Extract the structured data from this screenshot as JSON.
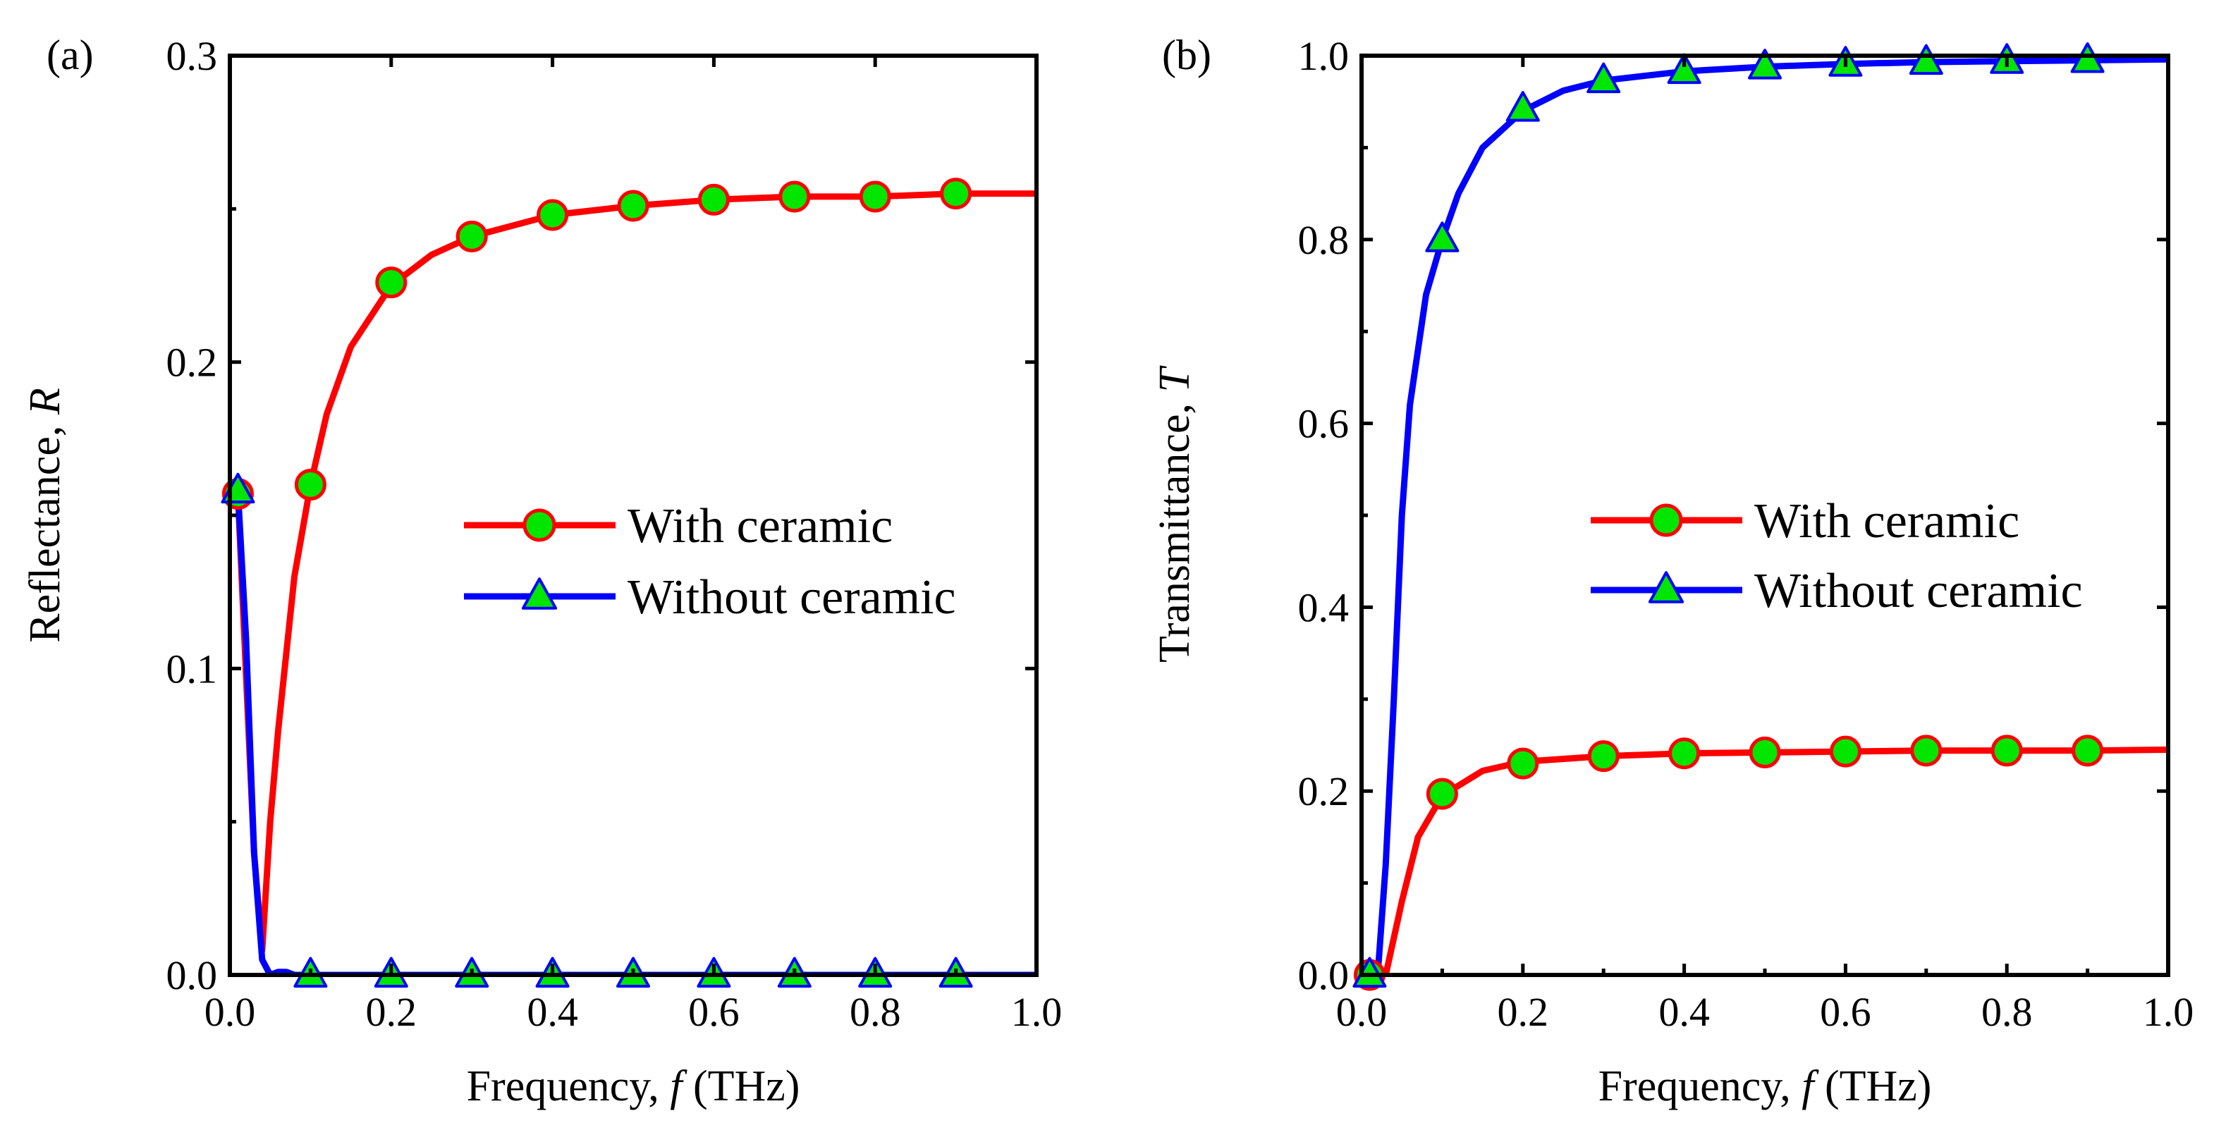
{
  "colors": {
    "with_ceramic": "#ff0000",
    "without_ceramic": "#0000ff",
    "marker_fill": "#00e600",
    "axis": "#000000"
  },
  "chart_data": [
    {
      "panel_label": "(a)",
      "type": "line",
      "xlabel_prefix": "Frequency, ",
      "xlabel_italic": "f",
      "xlabel_suffix": " (THz)",
      "ylabel_prefix": "Reflectance, ",
      "ylabel_italic": "R",
      "xlim": [
        0.0,
        1.0
      ],
      "ylim": [
        0.0,
        0.3
      ],
      "xticks": [
        0.0,
        0.2,
        0.4,
        0.6,
        0.8,
        1.0
      ],
      "xtick_labels": [
        "0.0",
        "0.2",
        "0.4",
        "0.6",
        "0.8",
        "1.0"
      ],
      "yticks": [
        0.0,
        0.1,
        0.2,
        0.3
      ],
      "ytick_labels": [
        "0.0",
        "0.1",
        "0.2",
        "0.3"
      ],
      "legend": [
        "With ceramic",
        "Without ceramic"
      ],
      "legend_position": "center-right",
      "series": [
        {
          "name": "With ceramic",
          "marker": "circle",
          "color_key": "with_ceramic",
          "x": [
            0.01,
            0.03,
            0.04,
            0.05,
            0.06,
            0.08,
            0.1,
            0.12,
            0.15,
            0.2,
            0.25,
            0.3,
            0.4,
            0.5,
            0.6,
            0.7,
            0.8,
            0.9,
            1.0
          ],
          "values": [
            0.157,
            0.04,
            0.008,
            0.05,
            0.08,
            0.13,
            0.16,
            0.183,
            0.205,
            0.225,
            0.235,
            0.241,
            0.248,
            0.251,
            0.253,
            0.254,
            0.254,
            0.255,
            0.255
          ],
          "marker_x": [
            0.01,
            0.1,
            0.2,
            0.3,
            0.4,
            0.5,
            0.6,
            0.7,
            0.8,
            0.9
          ],
          "marker_values": [
            0.157,
            0.16,
            0.226,
            0.241,
            0.248,
            0.251,
            0.253,
            0.254,
            0.254,
            0.255
          ]
        },
        {
          "name": "Without ceramic",
          "marker": "triangle",
          "color_key": "without_ceramic",
          "x": [
            0.01,
            0.02,
            0.03,
            0.04,
            0.05,
            0.06,
            0.07,
            0.08,
            1.0
          ],
          "values": [
            0.158,
            0.11,
            0.04,
            0.005,
            0.0,
            0.001,
            0.001,
            0.0,
            0.0
          ],
          "marker_x": [
            0.01,
            0.1,
            0.2,
            0.3,
            0.4,
            0.5,
            0.6,
            0.7,
            0.8,
            0.9
          ],
          "marker_values": [
            0.158,
            0.0,
            0.0,
            0.0,
            0.0,
            0.0,
            0.0,
            0.0,
            0.0,
            0.0
          ]
        }
      ]
    },
    {
      "panel_label": "(b)",
      "type": "line",
      "xlabel_prefix": "Frequency, ",
      "xlabel_italic": "f",
      "xlabel_suffix": " (THz)",
      "ylabel_prefix": "Transmittance, ",
      "ylabel_italic": "T",
      "xlim": [
        0.0,
        1.0
      ],
      "ylim": [
        0.0,
        1.0
      ],
      "xticks": [
        0.0,
        0.2,
        0.4,
        0.6,
        0.8,
        1.0
      ],
      "xtick_labels": [
        "0.0",
        "0.2",
        "0.4",
        "0.6",
        "0.8",
        "1.0"
      ],
      "yticks": [
        0.0,
        0.2,
        0.4,
        0.6,
        0.8,
        1.0
      ],
      "ytick_labels": [
        "0.0",
        "0.2",
        "0.4",
        "0.6",
        "0.8",
        "1.0"
      ],
      "legend": [
        "With ceramic",
        "Without ceramic"
      ],
      "legend_position": "center-right",
      "series": [
        {
          "name": "With ceramic",
          "marker": "circle",
          "color_key": "with_ceramic",
          "x": [
            0.01,
            0.03,
            0.05,
            0.07,
            0.1,
            0.15,
            0.2,
            0.3,
            0.4,
            0.5,
            0.6,
            0.7,
            0.8,
            0.9,
            1.0
          ],
          "values": [
            0.0,
            0.0,
            0.08,
            0.15,
            0.195,
            0.222,
            0.232,
            0.238,
            0.241,
            0.242,
            0.243,
            0.244,
            0.244,
            0.244,
            0.245
          ],
          "marker_x": [
            0.01,
            0.1,
            0.2,
            0.3,
            0.4,
            0.5,
            0.6,
            0.7,
            0.8,
            0.9
          ],
          "marker_values": [
            0.0,
            0.197,
            0.23,
            0.238,
            0.241,
            0.242,
            0.243,
            0.244,
            0.244,
            0.244
          ]
        },
        {
          "name": "Without ceramic",
          "marker": "triangle",
          "color_key": "without_ceramic",
          "x": [
            0.01,
            0.02,
            0.03,
            0.04,
            0.05,
            0.06,
            0.08,
            0.1,
            0.12,
            0.15,
            0.2,
            0.25,
            0.3,
            0.4,
            0.5,
            0.6,
            0.7,
            0.8,
            0.9,
            1.0
          ],
          "values": [
            0.0,
            0.0,
            0.12,
            0.3,
            0.5,
            0.62,
            0.74,
            0.8,
            0.85,
            0.9,
            0.94,
            0.962,
            0.973,
            0.983,
            0.988,
            0.991,
            0.993,
            0.994,
            0.995,
            0.996
          ],
          "marker_x": [
            0.01,
            0.1,
            0.2,
            0.3,
            0.4,
            0.5,
            0.6,
            0.7,
            0.8,
            0.9
          ],
          "marker_values": [
            0.0,
            0.8,
            0.942,
            0.973,
            0.983,
            0.988,
            0.991,
            0.993,
            0.994,
            0.995
          ]
        }
      ]
    }
  ]
}
